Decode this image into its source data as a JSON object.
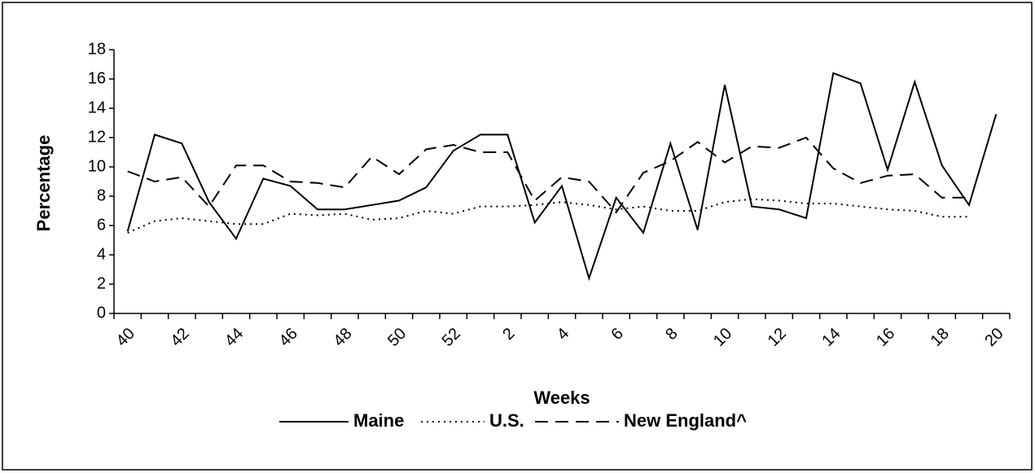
{
  "chart_data": {
    "type": "line",
    "xlabel": "Weeks",
    "ylabel": "Percentage",
    "categories": [
      "40",
      null,
      "42",
      null,
      "44",
      null,
      "46",
      null,
      "48",
      null,
      "50",
      null,
      "52",
      null,
      "2",
      null,
      "4",
      null,
      "6",
      null,
      "8",
      null,
      "10",
      null,
      "12",
      null,
      "14",
      null,
      "16",
      null,
      "18",
      null,
      "20"
    ],
    "series": [
      {
        "name": "Maine",
        "color": "#000000",
        "linestyle": "solid",
        "values": [
          5.6,
          12.2,
          11.6,
          7.6,
          5.1,
          9.2,
          8.7,
          7.1,
          7.1,
          7.4,
          7.7,
          8.6,
          11.1,
          12.2,
          12.2,
          6.2,
          8.7,
          2.4,
          7.9,
          5.5,
          11.6,
          5.7,
          15.6,
          7.3,
          7.1,
          6.5,
          16.4,
          15.7,
          9.8,
          15.8,
          10.1,
          7.4,
          13.6
        ]
      },
      {
        "name": "U.S.",
        "color": "#000000",
        "linestyle": "dotted",
        "values": [
          5.5,
          6.3,
          6.5,
          6.3,
          6.1,
          6.1,
          6.8,
          6.7,
          6.8,
          6.4,
          6.5,
          7.0,
          6.8,
          7.3,
          7.3,
          7.4,
          7.6,
          7.4,
          7.1,
          7.3,
          7.0,
          7.0,
          7.6,
          7.8,
          7.7,
          7.5,
          7.5,
          7.3,
          7.1,
          7.0,
          6.6,
          6.6,
          null
        ]
      },
      {
        "name": "New England^",
        "color": "#000000",
        "linestyle": "dashed",
        "values": [
          9.7,
          9.0,
          9.3,
          7.3,
          10.1,
          10.1,
          9.0,
          8.9,
          8.6,
          10.7,
          9.5,
          11.2,
          11.5,
          11.0,
          11.0,
          7.7,
          9.3,
          9.0,
          6.9,
          9.6,
          10.4,
          11.7,
          10.3,
          11.4,
          11.3,
          12.0,
          9.9,
          8.9,
          9.4,
          9.5,
          7.9,
          7.9,
          null
        ]
      }
    ],
    "ylim": [
      0,
      18
    ],
    "yticks": [
      0,
      2,
      4,
      6,
      8,
      10,
      12,
      14,
      16,
      18
    ],
    "grid": false,
    "legend": "bottom"
  }
}
